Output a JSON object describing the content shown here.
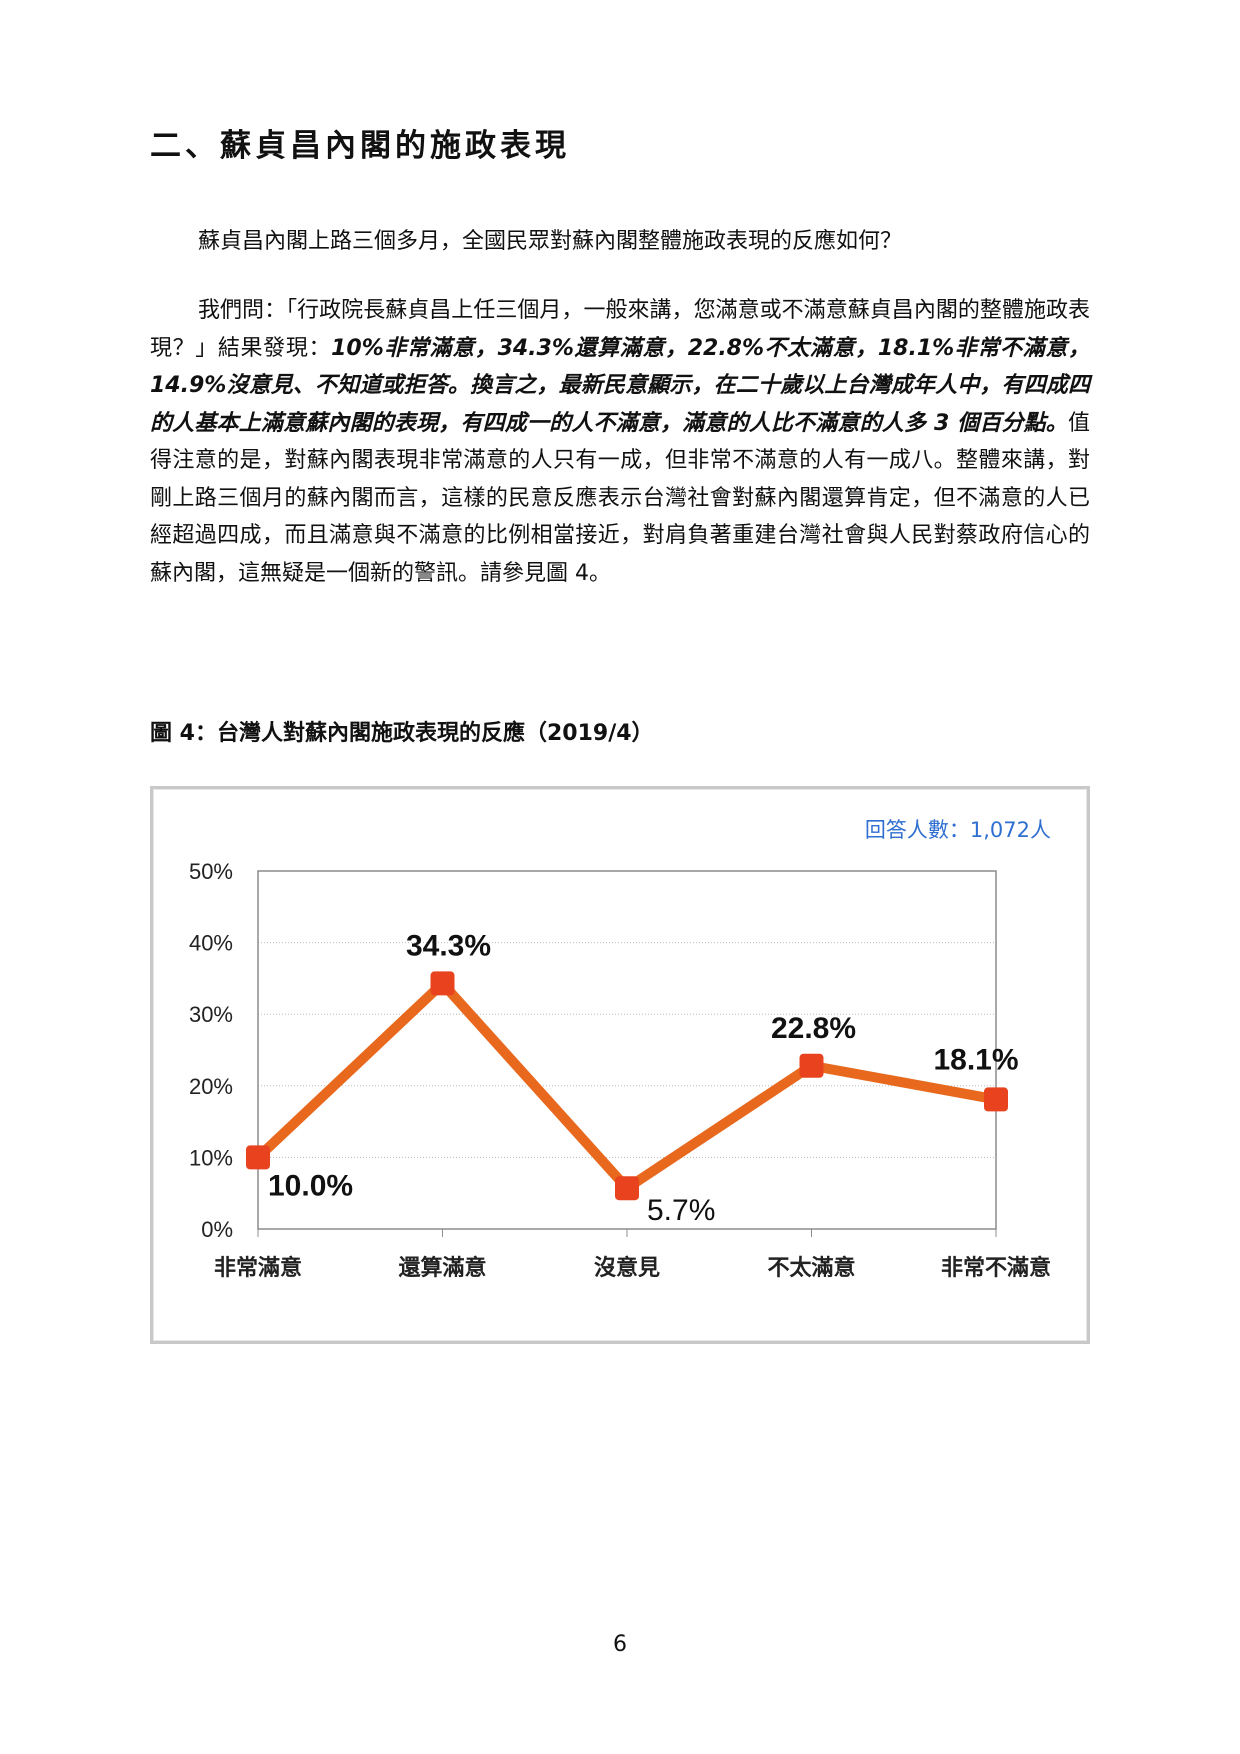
{
  "section_title": "二、蘇貞昌內閣的施政表現",
  "paragraph1": "蘇貞昌內閣上路三個多月，全國民眾對蘇內閣整體施政表現的反應如何？",
  "paragraph2": {
    "lead": "我們問：「行政院長蘇貞昌上任三個月，一般來講，您滿意或不滿意蘇貞昌內閣的整體施政表現？」結果發現：",
    "emphasis": "10%非常滿意，34.3%還算滿意，22.8%不太滿意，18.1%非常不滿意，14.9%沒意見、不知道或拒答。換言之，最新民意顯示，在二十歲以上台灣成年人中，有四成四的人基本上滿意蘇內閣的表現，有四成一的人不滿意，滿意的人比不滿意的人多 3 個百分點。",
    "tail": "值得注意的是，對蘇內閣表現非常滿意的人只有一成，但非常不滿意的人有一成八。整體來講，對剛上路三個月的蘇內閣而言，這樣的民意反應表示台灣社會對蘇內閣還算肯定，但不滿意的人已經超過四成，而且滿意與不滿意的比例相當接近，對肩負著重建台灣社會與人民對蔡政府信心的蘇內閣，這無疑是一個新的警訊。請參見圖 4。"
  },
  "figure_caption": "圖 4：台灣人對蘇內閣施政表現的反應（2019/4）",
  "page_number": "6",
  "chart_data": {
    "type": "line",
    "categories": [
      "非常滿意",
      "還算滿意",
      "沒意見",
      "不太滿意",
      "非常不滿意"
    ],
    "values": [
      10.0,
      34.3,
      5.7,
      22.8,
      18.1
    ],
    "data_labels": [
      "10.0%",
      "34.3%",
      "5.7%",
      "22.8%",
      "18.1%"
    ],
    "yticks": [
      "0%",
      "10%",
      "20%",
      "30%",
      "40%",
      "50%"
    ],
    "ylim": [
      0,
      50
    ],
    "annotation": "回答人數：1,072人",
    "grid": true,
    "line_color": "#e8691e",
    "marker_color": "#e8431e",
    "annotation_color": "#2f6fd1"
  }
}
